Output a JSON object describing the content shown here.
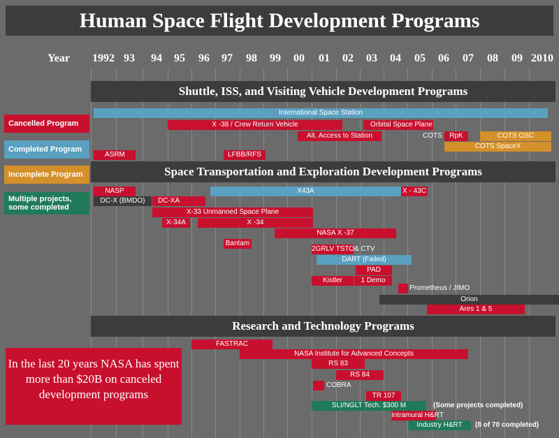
{
  "title": "Human Space Flight Development Programs",
  "year_label": "Year",
  "years": [
    "1992",
    "93",
    "94",
    "95",
    "96",
    "97",
    "98",
    "99",
    "00",
    "01",
    "02",
    "03",
    "04",
    "05",
    "06",
    "07",
    "08",
    "09",
    "2010"
  ],
  "sections": {
    "shuttle": "Shuttle, ISS, and Visiting Vehicle Development Programs",
    "space_transport": "Space Transportation and Exploration Development Programs",
    "research": "Research and Technology Programs"
  },
  "legend": {
    "cancelled": "Cancelled Program",
    "completed": "Completed Program",
    "incomplete": "Incomplete Program",
    "multiple": "Multiple projects, some completed"
  },
  "bars": {
    "iss": "International Space Station",
    "x38": "X -38 / Crew Return Vehicle",
    "orbital": "Orbital Space Plane",
    "alt_access": "Alt. Access to Station",
    "cots": "COTS",
    "rpk": "RpK",
    "cots_osc": "COTS OSC",
    "cots_spacex": "COTS SpaceX",
    "asrm": "ASRM",
    "lfbb": "LFBB/RFS",
    "nasp": "NASP",
    "x43a": "X43A",
    "x43c": "X - 43C",
    "dcx": "DC-X (BMDO)",
    "dcxa": "DC-XA",
    "x33": "X-33 Unmanned Space Plane",
    "x34a": "X-34A",
    "x34": "X -34",
    "x37": "NASA X -37",
    "bantam": "Bantam",
    "grlv": "2GRLV TSTO",
    "ctv": "& CTV",
    "dart": "DART (Failed)",
    "pad": "PAD",
    "kistler": "Kistler",
    "one_demo": "1 Demo",
    "prometheus": "Prometheus / JIMO",
    "orion": "Orion",
    "ares": "Ares 1 & 5",
    "fastrac": "FASTRAC",
    "niac": "NASA Institute for Advanced Concepts",
    "rs83": "RS 83",
    "rs84": "RS 84",
    "cobra": "COBRA",
    "tr107": "TR 107",
    "sli": "SLI/NGLT Tech. $300 M",
    "sli_note": "(Some projects completed)",
    "intramural": "Intramural H&RT",
    "industry": "Industry H&RT",
    "industry_note": "(8 of 70 completed)"
  },
  "callout": "In the last 20 years NASA has spent more than $20B on canceled development programs",
  "colors": {
    "cancelled": "#c8102e",
    "completed": "#5aa0c0",
    "incomplete": "#d4902a",
    "multiple": "#1f7a5a",
    "background": "#6b6b6b",
    "header": "#3c3c3c"
  }
}
